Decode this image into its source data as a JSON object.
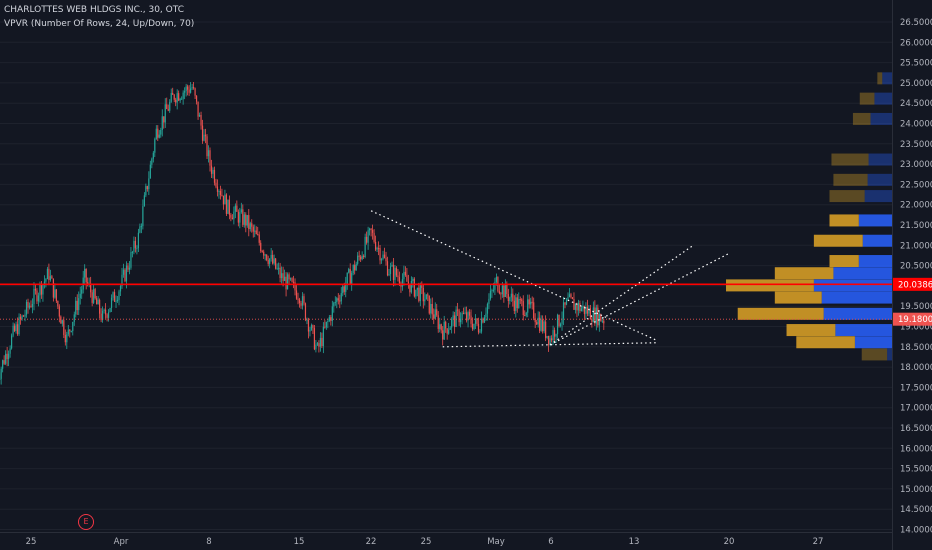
{
  "header": {
    "symbol_line": "CHARLOTTES WEB HLDGS INC., 30, OTC",
    "indicator_line": "VPVR (Number Of Rows, 24, Up/Down, 70)"
  },
  "colors": {
    "background": "#131722",
    "up": "#26a69a",
    "down": "#ef5350",
    "vp_up": "#2962ff",
    "vp_down": "#e0a526",
    "horizontal_line": "#ff0000"
  },
  "price_axis": {
    "labels": [
      "26.5000",
      "26.0000",
      "25.5000",
      "25.0000",
      "24.5000",
      "24.0000",
      "23.5000",
      "23.0000",
      "22.5000",
      "22.0000",
      "21.5000",
      "21.0000",
      "20.5000",
      "20.0000",
      "19.5000",
      "19.0000",
      "18.5000",
      "18.0000",
      "17.5000",
      "17.0000",
      "16.5000",
      "16.0000",
      "15.5000",
      "15.0000",
      "14.5000",
      "14.0000"
    ],
    "line_price_label": "20.0386",
    "last_price_label": "19.1800"
  },
  "time_axis": {
    "labels": [
      "25",
      "Apr",
      "8",
      "15",
      "22",
      "25",
      "May",
      "6",
      "13",
      "20",
      "27"
    ]
  },
  "events": {
    "earnings_badge": "E"
  },
  "chart_data": {
    "type": "candlestick",
    "symbol": "CHARLOTTES WEB HLDGS INC.",
    "interval": "30",
    "exchange": "OTC",
    "y_range": [
      13.8,
      26.9
    ],
    "horizontal_line": 20.0386,
    "last_price": 19.18,
    "trend_lines": [
      {
        "from": {
          "date": "Apr 19",
          "price": 21.85
        },
        "to": {
          "date": "May 13",
          "price": 18.65
        }
      },
      {
        "from": {
          "date": "Apr 25",
          "price": 18.5
        },
        "to": {
          "date": "May 13",
          "price": 18.6
        }
      },
      {
        "from": {
          "date": "May 3",
          "price": 18.55
        },
        "to": {
          "date": "May 15",
          "price": 21.0
        }
      },
      {
        "from": {
          "date": "May 3",
          "price": 18.55
        },
        "to": {
          "date": "May 17",
          "price": 20.8
        }
      }
    ],
    "price_path": [
      {
        "date": "Mar 21",
        "price": 17.6
      },
      {
        "date": "Mar 22",
        "price": 18.8
      },
      {
        "date": "Mar 25",
        "price": 19.6
      },
      {
        "date": "Mar 26",
        "price": 20.3
      },
      {
        "date": "Mar 27",
        "price": 18.7
      },
      {
        "date": "Mar 28",
        "price": 20.2
      },
      {
        "date": "Mar 29",
        "price": 19.2
      },
      {
        "date": "Apr 1",
        "price": 20.0
      },
      {
        "date": "Apr 2",
        "price": 21.2
      },
      {
        "date": "Apr 3",
        "price": 23.8
      },
      {
        "date": "Apr 4",
        "price": 24.7
      },
      {
        "date": "Apr 5",
        "price": 24.9
      },
      {
        "date": "Apr 8",
        "price": 23.0
      },
      {
        "date": "Apr 9",
        "price": 21.9
      },
      {
        "date": "Apr 10",
        "price": 21.6
      },
      {
        "date": "Apr 11",
        "price": 20.9
      },
      {
        "date": "Apr 12",
        "price": 20.2
      },
      {
        "date": "Apr 15",
        "price": 19.8
      },
      {
        "date": "Apr 16",
        "price": 18.4
      },
      {
        "date": "Apr 17",
        "price": 19.6
      },
      {
        "date": "Apr 18",
        "price": 20.4
      },
      {
        "date": "Apr 19",
        "price": 21.3
      },
      {
        "date": "Apr 22",
        "price": 20.4
      },
      {
        "date": "Apr 23",
        "price": 20.1
      },
      {
        "date": "Apr 24",
        "price": 19.7
      },
      {
        "date": "Apr 25",
        "price": 18.9
      },
      {
        "date": "Apr 26",
        "price": 19.3
      },
      {
        "date": "Apr 29",
        "price": 19.0
      },
      {
        "date": "Apr 30",
        "price": 20.1
      },
      {
        "date": "May 1",
        "price": 19.6
      },
      {
        "date": "May 2",
        "price": 19.4
      },
      {
        "date": "May 3",
        "price": 18.7
      },
      {
        "date": "May 6",
        "price": 19.6
      },
      {
        "date": "May 7",
        "price": 19.4
      },
      {
        "date": "May 8",
        "price": 19.18
      }
    ],
    "volume_profile": {
      "rows": 24,
      "mode": "Up/Down",
      "value_area": 70,
      "bins": [
        {
          "price": 25.1,
          "up": 10,
          "down": 5
        },
        {
          "price": 24.6,
          "up": 18,
          "down": 15
        },
        {
          "price": 24.1,
          "up": 22,
          "down": 18
        },
        {
          "price": 23.1,
          "up": 24,
          "down": 38
        },
        {
          "price": 22.6,
          "up": 25,
          "down": 35
        },
        {
          "price": 22.2,
          "up": 28,
          "down": 36
        },
        {
          "price": 21.6,
          "up": 34,
          "down": 30
        },
        {
          "price": 21.1,
          "up": 30,
          "down": 50
        },
        {
          "price": 20.6,
          "up": 34,
          "down": 30
        },
        {
          "price": 20.3,
          "up": 60,
          "down": 60
        },
        {
          "price": 20.0,
          "up": 80,
          "down": 90
        },
        {
          "price": 19.7,
          "up": 72,
          "down": 48
        },
        {
          "price": 19.3,
          "up": 70,
          "down": 88
        },
        {
          "price": 18.9,
          "up": 58,
          "down": 50
        },
        {
          "price": 18.6,
          "up": 38,
          "down": 60
        },
        {
          "price": 18.3,
          "up": 5,
          "down": 26
        }
      ]
    }
  }
}
